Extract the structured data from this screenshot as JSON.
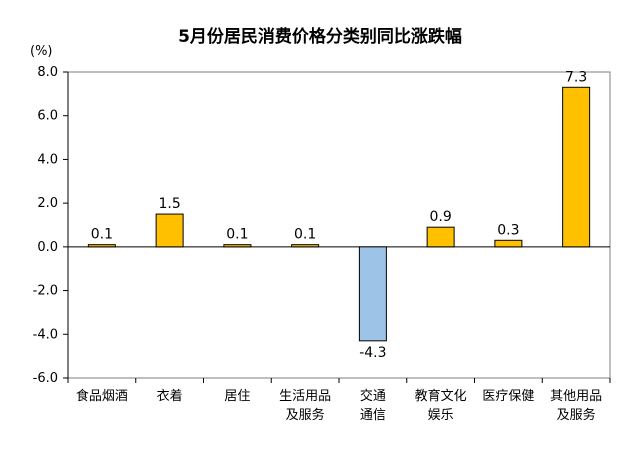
{
  "chart_data": {
    "type": "bar",
    "title": "5月份居民消费价格分类别同比涨跌幅",
    "ylabel": "(%)",
    "xlabel": "",
    "ylim": [
      -6.0,
      8.0
    ],
    "yticks": [
      "8.0",
      "6.0",
      "4.0",
      "2.0",
      "0.0",
      "-2.0",
      "-4.0",
      "-6.0"
    ],
    "ytick_values": [
      8,
      6,
      4,
      2,
      0,
      -2,
      -4,
      -6
    ],
    "categories": [
      [
        "食品烟酒"
      ],
      [
        "衣着"
      ],
      [
        "居住"
      ],
      [
        "生活用品",
        "及服务"
      ],
      [
        "交通",
        "通信"
      ],
      [
        "教育文化",
        "娱乐"
      ],
      [
        "医疗保健"
      ],
      [
        "其他用品",
        "及服务"
      ]
    ],
    "values": [
      0.1,
      1.5,
      0.1,
      0.1,
      -4.3,
      0.9,
      0.3,
      7.3
    ],
    "value_labels": [
      "0.1",
      "1.5",
      "0.1",
      "0.1",
      "-4.3",
      "0.9",
      "0.3",
      "7.3"
    ],
    "grid": false,
    "legend": "none",
    "colors": {
      "positive": "#FFC000",
      "negative": "#9DC3E6",
      "bar_stroke": "#000000",
      "axis": "#000000",
      "frame": "#7F7F7F"
    }
  }
}
